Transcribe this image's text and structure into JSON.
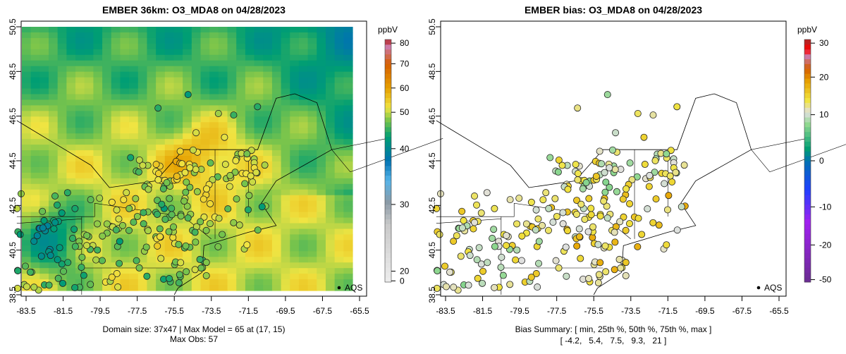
{
  "chart_data": [
    {
      "type": "heatmap",
      "title": "EMBER 36km: O3_MDA8 on 04/28/2023",
      "xlim": [
        -84,
        -65
      ],
      "ylim": [
        38.5,
        50.5
      ],
      "x_ticks": [
        "-83.5",
        "-81.5",
        "-79.5",
        "-77.5",
        "-75.5",
        "-73.5",
        "-71.5",
        "-69.5",
        "-67.5",
        "-65.5"
      ],
      "y_ticks": [
        "38.5",
        "40.5",
        "42.5",
        "44.5",
        "46.5",
        "48.5",
        "50.5"
      ],
      "colorbar": {
        "unit": "ppbV",
        "ticks": [
          "0",
          "20",
          "30",
          "40",
          "50",
          "60",
          "70",
          "80"
        ],
        "range": [
          0,
          82
        ]
      },
      "legend": "AQS",
      "footer": [
        "Domain size: 37x47 | Max Model = 65 at (17, 15)",
        "Max Obs: 57"
      ]
    },
    {
      "type": "scatter",
      "title": "EMBER bias: O3_MDA8 on 04/28/2023",
      "xlim": [
        -84,
        -65
      ],
      "ylim": [
        38.5,
        50.5
      ],
      "x_ticks": [
        "-83.5",
        "-81.5",
        "-79.5",
        "-77.5",
        "-75.5",
        "-73.5",
        "-71.5",
        "-69.5",
        "-67.5",
        "-65.5"
      ],
      "y_ticks": [
        "38.5",
        "40.5",
        "42.5",
        "44.5",
        "46.5",
        "48.5",
        "50.5"
      ],
      "colorbar": {
        "unit": "ppbV",
        "ticks": [
          "-50",
          "-20",
          "-10",
          "0",
          "10",
          "20",
          "30"
        ],
        "range": [
          -52,
          32
        ]
      },
      "legend": "AQS",
      "footer": [
        "Bias Summary: [ min, 25th %, 50th %, 75th %, max ]",
        "[ -4.2,   5.4,   7.5,   9.3,   21 ]"
      ],
      "bias_summary": {
        "min": -4.2,
        "p25": 5.4,
        "p50": 7.5,
        "p75": 9.3,
        "max": 21
      }
    }
  ]
}
